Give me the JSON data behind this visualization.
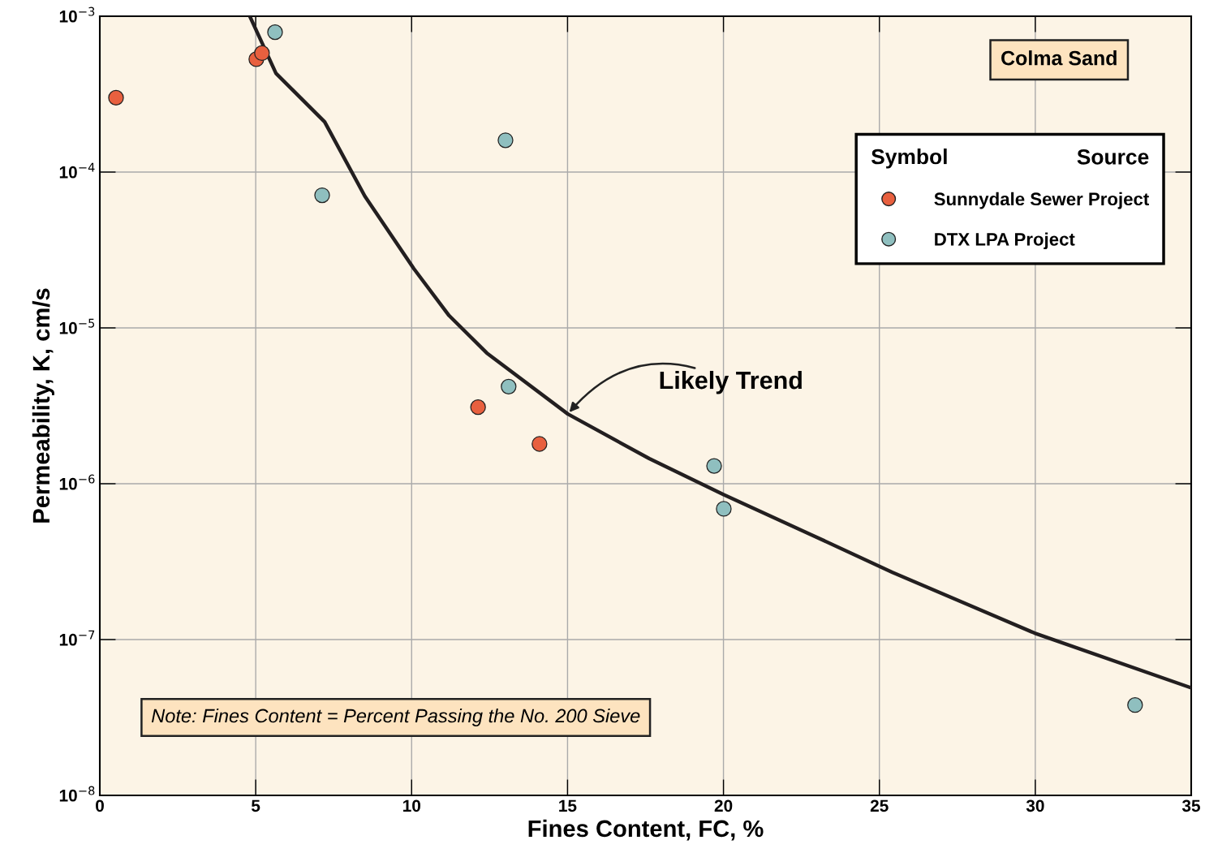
{
  "chart_data": {
    "type": "scatter",
    "xlabel": "Fines Content, FC, %",
    "ylabel": "Permeability, K, cm/s",
    "log": "y",
    "xlim": [
      0,
      35
    ],
    "xticks": [
      0,
      5,
      10,
      15,
      20,
      25,
      30,
      35
    ],
    "ylim": [
      1e-08,
      0.001
    ],
    "yticks": [
      {
        "value": 1e-08,
        "label": "10$^{−8}$"
      },
      {
        "value": 1e-07,
        "label": "10$^{−7}$"
      },
      {
        "value": 1e-06,
        "label": "10$^{−6}$"
      },
      {
        "value": 1e-05,
        "label": "10$^{−5}$"
      },
      {
        "value": 0.0001,
        "label": "10$^{−4}$"
      },
      {
        "value": 0.001,
        "label": "10$^{−3}$"
      }
    ],
    "grid": true,
    "legend": "top right",
    "legend_title": "Source",
    "marker": "circle",
    "series": [
      {
        "name": "Sunnydale Sewer Project",
        "color": "#e8603f",
        "x": [
          0.52,
          5.02,
          5.2,
          12.13,
          14.1
        ],
        "values": [
          0.0003,
          0.00053,
          0.00058,
          3.1e-06,
          1.8e-06
        ]
      },
      {
        "name": "DTX LPA Project",
        "color": "#8fbfbf",
        "x": [
          5.62,
          7.13,
          13.01,
          13.11,
          19.7,
          20.01,
          33.2
        ],
        "values": [
          0.00079,
          7.1e-05,
          0.00016,
          4.2e-06,
          1.3e-06,
          6.9e-07,
          3.8e-08
        ]
      },
      {
        "type": "line",
        "color": "#231f20",
        "line_style": "solid",
        "marker": "none",
        "x": [
          4.81,
          5.65,
          7.21,
          8.5,
          10.07,
          11.2,
          12.41,
          15.01,
          17.62,
          20.01,
          22.82,
          25.42,
          29.98,
          35
        ],
        "values": [
          0.001,
          0.00043,
          0.00021,
          7e-05,
          2.4e-05,
          1.2e-05,
          6.9e-06,
          2.8e-06,
          1.45e-06,
          8.5e-07,
          4.7e-07,
          2.7e-07,
          1.1e-07,
          4.9e-08
        ]
      }
    ],
    "annotations": [
      "Colma Sand",
      "Symbol",
      "Note: Fines Content = Percent Passing the No. 200 Sieve",
      {
        "text": "Likely Trend",
        "x": 15.01,
        "y": 2.8e-06
      }
    ]
  }
}
